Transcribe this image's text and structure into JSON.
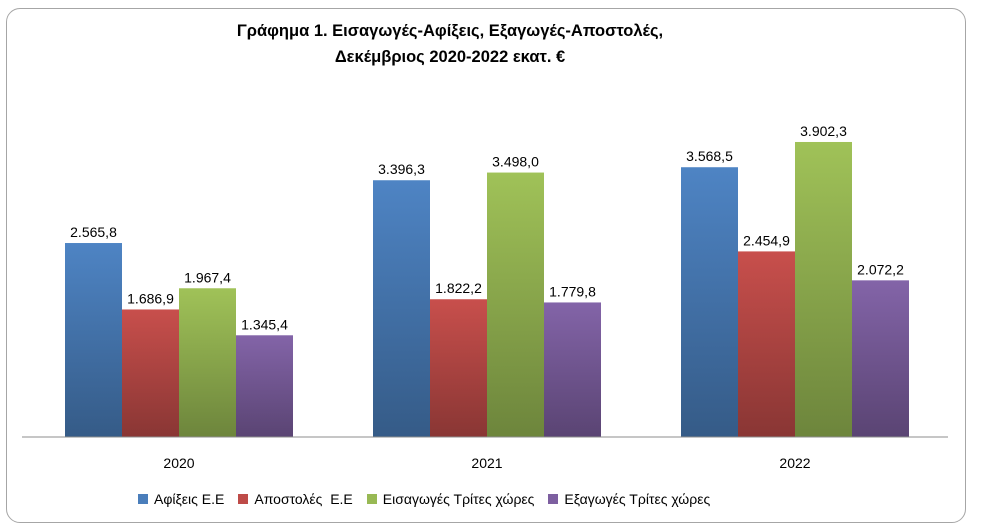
{
  "chart_data": {
    "type": "bar",
    "title_line1": "Γράφημα 1. Εισαγωγές-Αφίξεις, Εξαγωγές-Αποστολές,",
    "title_line2": "Δεκέμβριος 2020-2022 εκατ. €",
    "categories": [
      "2020",
      "2021",
      "2022"
    ],
    "series": [
      {
        "name": "Αφίξεις Ε.Ε",
        "color": "#4a7ebb",
        "values": [
          2565.8,
          3396.3,
          3568.5
        ],
        "labels": [
          "2.565,8",
          "3.396,3",
          "3.568,5"
        ]
      },
      {
        "name": "Αποστολές  Ε.Ε",
        "color": "#be4b48",
        "values": [
          1686.9,
          1822.2,
          2454.9
        ],
        "labels": [
          "1.686,9",
          "1.822,2",
          "2.454,9"
        ]
      },
      {
        "name": "Εισαγωγές Τρίτες χώρες",
        "color": "#98b954",
        "values": [
          1967.4,
          3498.0,
          3902.3
        ],
        "labels": [
          "1.967,4",
          "3.498,0",
          "3.902,3"
        ]
      },
      {
        "name": "Εξαγωγές Τρίτες χώρες",
        "color": "#7d5fa0",
        "values": [
          1345.4,
          1779.8,
          2072.2
        ],
        "labels": [
          "1.345,4",
          "1.779,8",
          "2.072,2"
        ]
      }
    ],
    "ylim": [
      0,
      4500
    ],
    "grid": false,
    "legend_position": "bottom"
  }
}
